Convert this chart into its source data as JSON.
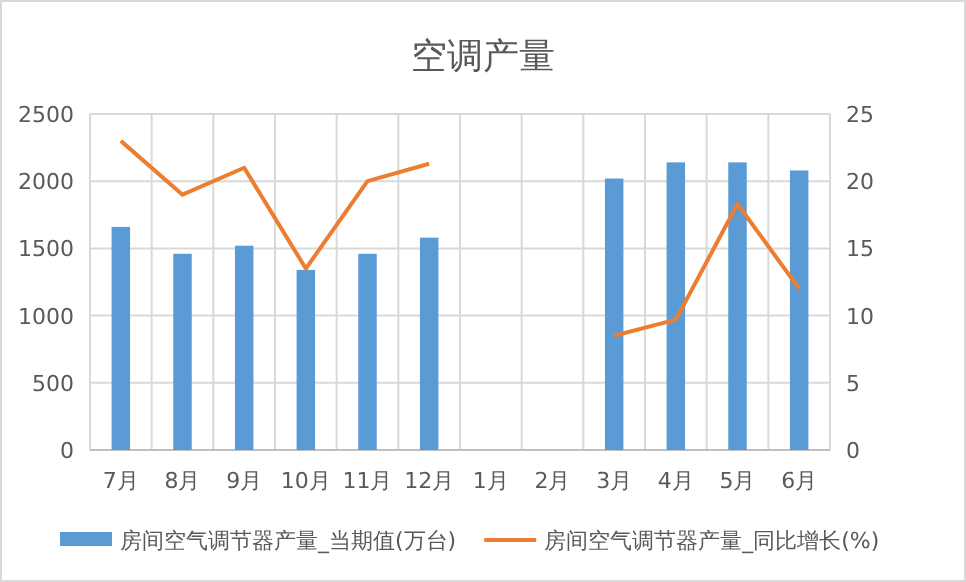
{
  "chart_data": {
    "type": "bar",
    "title": "空调产量",
    "categories": [
      "7月",
      "8月",
      "9月",
      "10月",
      "11月",
      "12月",
      "1月",
      "2月",
      "3月",
      "4月",
      "5月",
      "6月"
    ],
    "series": [
      {
        "name": "房间空气调节器产量_当期值(万台)",
        "color": "#5b9bd5",
        "values": [
          1660,
          1460,
          1520,
          1340,
          1460,
          1580,
          null,
          null,
          2020,
          2140,
          2140,
          2080
        ]
      },
      {
        "name": "房间空气调节器产量_同比增长(%)",
        "type": "line",
        "axis": "y2",
        "color": "#ed7d31",
        "values": [
          23,
          19,
          21,
          13.5,
          20,
          21.3,
          null,
          null,
          8.5,
          9.7,
          18.3,
          12
        ]
      }
    ],
    "ylim": [
      0,
      2500
    ],
    "yticks": [
      0,
      500,
      1000,
      1500,
      2000,
      2500
    ],
    "y2lim": [
      0,
      25
    ],
    "y2ticks": [
      0,
      5,
      10,
      15,
      20,
      25
    ],
    "grid": true,
    "legend": "bottom",
    "marker": "none",
    "line_style": "solid"
  }
}
